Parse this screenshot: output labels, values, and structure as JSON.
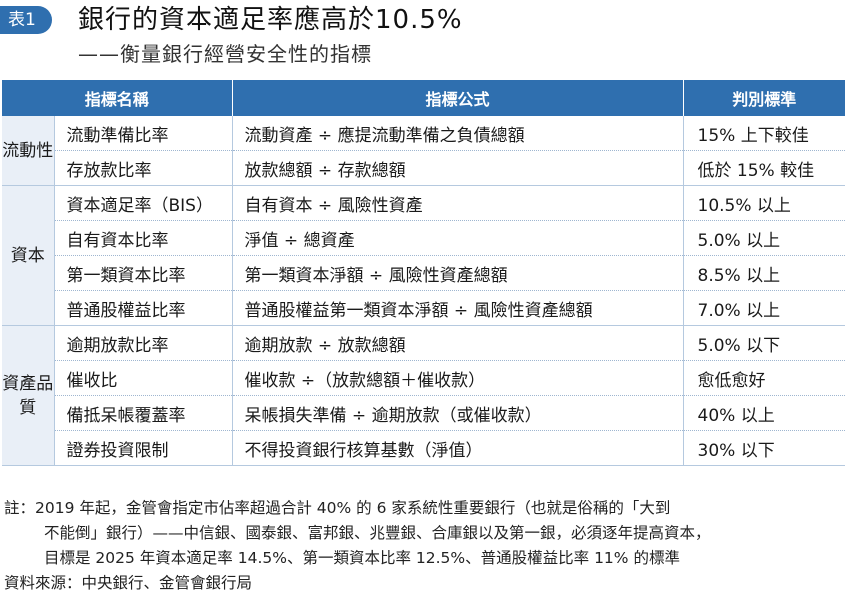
{
  "header": {
    "badge": "表1",
    "title": "銀行的資本適足率應高於10.5%",
    "subtitle": "——衡量銀行經營安全性的指標"
  },
  "table": {
    "columns": [
      "指標名稱",
      "指標公式",
      "判別標準"
    ],
    "groups": [
      {
        "label": "流動性",
        "rows": [
          {
            "name": "流動準備比率",
            "formula": "流動資產 ÷ 應提流動準備之負債總額",
            "standard": "15% 上下較佳"
          },
          {
            "name": "存放款比率",
            "formula": "放款總額 ÷ 存款總額",
            "standard": "低於 15% 較佳"
          }
        ]
      },
      {
        "label": "資本",
        "rows": [
          {
            "name": "資本適足率（BIS）",
            "formula": "自有資本 ÷ 風險性資產",
            "standard": "10.5% 以上"
          },
          {
            "name": "自有資本比率",
            "formula": "淨值 ÷ 總資產",
            "standard": "5.0% 以上"
          },
          {
            "name": "第一類資本比率",
            "formula": "第一類資本淨額 ÷ 風險性資產總額",
            "standard": "8.5% 以上"
          },
          {
            "name": "普通股權益比率",
            "formula": "普通股權益第一類資本淨額 ÷ 風險性資產總額",
            "standard": "7.0% 以上"
          }
        ]
      },
      {
        "label": "資產品質",
        "rows": [
          {
            "name": "逾期放款比率",
            "formula": "逾期放款 ÷ 放款總額",
            "standard": "5.0% 以下"
          },
          {
            "name": "催收比",
            "formula": "催收款 ÷（放款總額＋催收款）",
            "standard": "愈低愈好"
          },
          {
            "name": "備抵呆帳覆蓋率",
            "formula": "呆帳損失準備 ÷ 逾期放款（或催收款）",
            "standard": "40% 以上"
          },
          {
            "name": "證券投資限制",
            "formula": "不得投資銀行核算基數（淨值）",
            "standard": "30% 以下"
          }
        ]
      }
    ]
  },
  "footer": {
    "note_line1": "註：2019 年起，金管會指定市佔率超過合計 40% 的 6 家系統性重要銀行（也就是俗稱的「大到",
    "note_line2": "不能倒」銀行）——中信銀、國泰銀、富邦銀、兆豐銀、合庫銀以及第一銀，必須逐年提高資本，",
    "note_line3": "目標是 2025 年資本適足率 14.5%、第一類資本比率 12.5%、普通股權益比率 11% 的標準",
    "source": "資料來源：中央銀行、金管會銀行局"
  }
}
